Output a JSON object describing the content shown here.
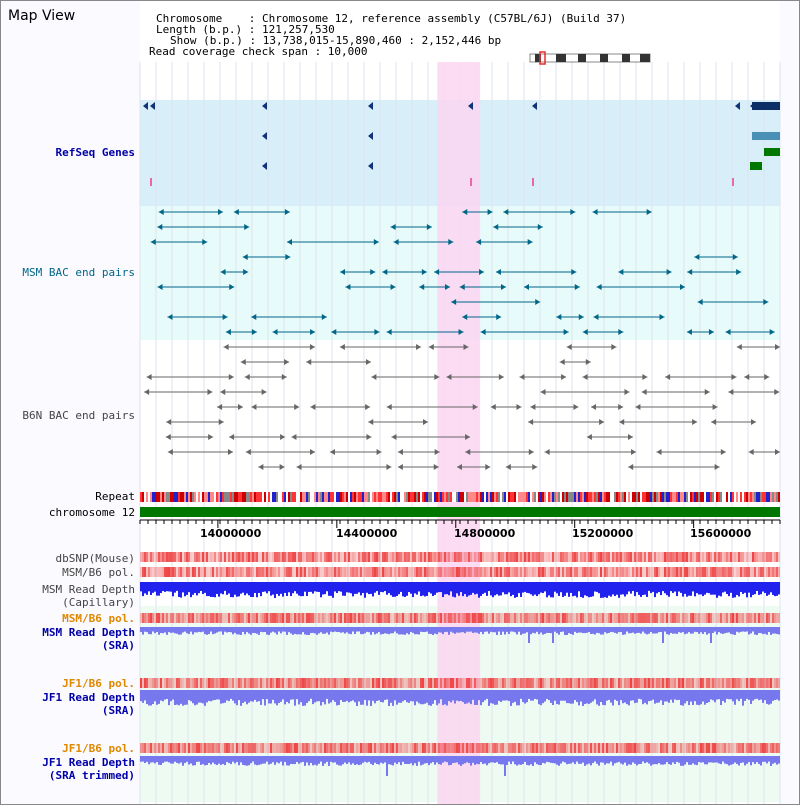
{
  "title": "Map View",
  "info": {
    "chromosome": "Chromosome    : Chromosome 12, reference assembly (C57BL/6J) (Build 37)",
    "length": "Length (b.p.) : 121,257,530",
    "show": "Show (b.p.) : 13,738,015-15,890,460 : 2,152,446 bp",
    "span": "Read coverage check span : 10,000"
  },
  "tracks": {
    "refseq": "RefSeq Genes",
    "msm_bac": "MSM BAC end pairs",
    "b6n_bac": "B6N BAC end pairs",
    "repeat": "Repeat",
    "chromosome": "chromosome 12",
    "dbsnp": "dbSNP(Mouse)",
    "msm_b6_pol": "MSM/B6 pol.",
    "msm_depth_cap_1": "MSM Read Depth",
    "msm_depth_cap_2": "(Capillary)",
    "msm_b6_pol_2": "MSM/B6 pol.",
    "msm_depth_sra_1": "MSM Read Depth",
    "msm_depth_sra_2": "(SRA)",
    "jf1_b6_pol": "JF1/B6 pol.",
    "jf1_depth_sra_1": "JF1 Read Depth",
    "jf1_depth_sra_2": "(SRA)",
    "jf1_b6_pol_2": "JF1/B6 pol.",
    "jf1_depth_trim_1": "JF1 Read Depth",
    "jf1_depth_trim_2": "(SRA trimmed)"
  },
  "axis": {
    "ticks": [
      "14000000",
      "14400000",
      "14800000",
      "15200000",
      "15600000"
    ],
    "tick_values": [
      14000000,
      14400000,
      14800000,
      15200000,
      15600000
    ],
    "start": 13738015,
    "end": 15890460
  },
  "highlight": {
    "start_bp": 14738000,
    "end_bp": 14882000
  },
  "colors": {
    "refseq_bg": "#d8effa",
    "bac_bg": "#e8fbfb",
    "highlight": "#fbd6f1",
    "msm_bac": "#006688",
    "b6n_bac": "#666666",
    "chromosome": "#007700",
    "depth_blue": "#2222ee",
    "depth_lavender": "#7777ee",
    "dbsnp": "#ee4444"
  }
}
